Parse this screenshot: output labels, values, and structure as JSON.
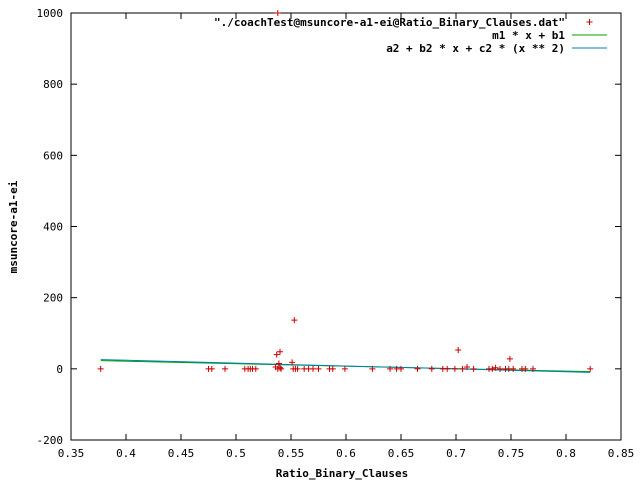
{
  "chart_data": {
    "type": "scatter",
    "xlabel": "Ratio_Binary_Clauses",
    "ylabel": "msuncore-a1-ei",
    "xlim": [
      0.35,
      0.85
    ],
    "ylim": [
      -200,
      1000
    ],
    "xticks": [
      "0.35",
      "0.4",
      "0.45",
      "0.5",
      "0.55",
      "0.6",
      "0.65",
      "0.7",
      "0.75",
      "0.8",
      "0.85"
    ],
    "yticks": [
      "-200",
      "0",
      "200",
      "400",
      "600",
      "800",
      "1000"
    ],
    "xtick_values": [
      0.35,
      0.4,
      0.45,
      0.5,
      0.55,
      0.6,
      0.65,
      0.7,
      0.75,
      0.8,
      0.85
    ],
    "ytick_values": [
      -200,
      0,
      200,
      400,
      600,
      800,
      1000
    ],
    "grid": false,
    "legend_position": "top-right",
    "series": [
      {
        "name": "\"./coachTest@msuncore-a1-ei@Ratio_Binary_Clauses.dat\"",
        "kind": "points",
        "color": "#cc0000",
        "x": [
          0.377,
          0.475,
          0.478,
          0.49,
          0.508,
          0.511,
          0.513,
          0.515,
          0.518,
          0.536,
          0.537,
          0.538,
          0.538,
          0.539,
          0.54,
          0.54,
          0.541,
          0.552,
          0.553,
          0.551,
          0.554,
          0.556,
          0.562,
          0.566,
          0.57,
          0.575,
          0.585,
          0.588,
          0.599,
          0.624,
          0.64,
          0.646,
          0.65,
          0.665,
          0.678,
          0.688,
          0.692,
          0.699,
          0.702,
          0.706,
          0.71,
          0.716,
          0.73,
          0.733,
          0.736,
          0.74,
          0.745,
          0.748,
          0.749,
          0.752,
          0.76,
          0.763,
          0.77,
          0.822
        ],
        "y": [
          0,
          0,
          0,
          0,
          0,
          0,
          0,
          0,
          0,
          5,
          40,
          0,
          1000,
          15,
          48,
          3,
          0,
          0,
          137,
          18,
          0,
          0,
          0,
          0,
          0,
          0,
          0,
          0,
          0,
          0,
          0,
          0,
          0,
          0,
          0,
          0,
          0,
          0,
          53,
          0,
          5,
          0,
          0,
          0,
          3,
          0,
          0,
          0,
          28,
          0,
          0,
          0,
          0,
          0
        ]
      },
      {
        "name": "m1 * x + b1",
        "kind": "line",
        "color": "#00a000",
        "x": [
          0.377,
          0.822
        ],
        "y": [
          23,
          -8
        ]
      },
      {
        "name": "a2 + b2 * x + c2 * (x ** 2)",
        "kind": "line",
        "color": "#0080b0",
        "x": [
          0.377,
          0.822
        ],
        "y": [
          26,
          -10
        ]
      }
    ]
  }
}
